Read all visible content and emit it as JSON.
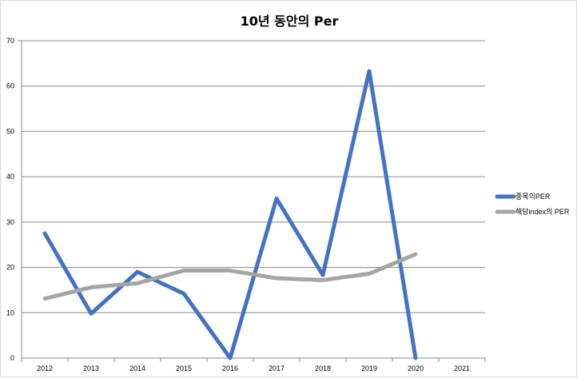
{
  "chart_data": {
    "type": "line",
    "title": "10년 동안의 Per",
    "xlabel": "",
    "ylabel": "",
    "categories": [
      "2012",
      "2013",
      "2014",
      "2015",
      "2016",
      "2017",
      "2018",
      "2019",
      "2020",
      "2021"
    ],
    "ylim": [
      0,
      70
    ],
    "yticks": [
      0,
      10,
      20,
      30,
      40,
      50,
      60,
      70
    ],
    "grid": true,
    "legend_position": "right",
    "series": [
      {
        "name": "종목의PER",
        "color": "#4472C4",
        "values": [
          27.5,
          9.8,
          19.0,
          14.2,
          0,
          35.2,
          18.3,
          63.3,
          0,
          null
        ]
      },
      {
        "name": "해당index의 PER",
        "color": "#A5A5A5",
        "values": [
          13.1,
          15.6,
          16.5,
          19.3,
          19.3,
          17.6,
          17.2,
          18.6,
          22.9,
          null
        ]
      }
    ]
  }
}
